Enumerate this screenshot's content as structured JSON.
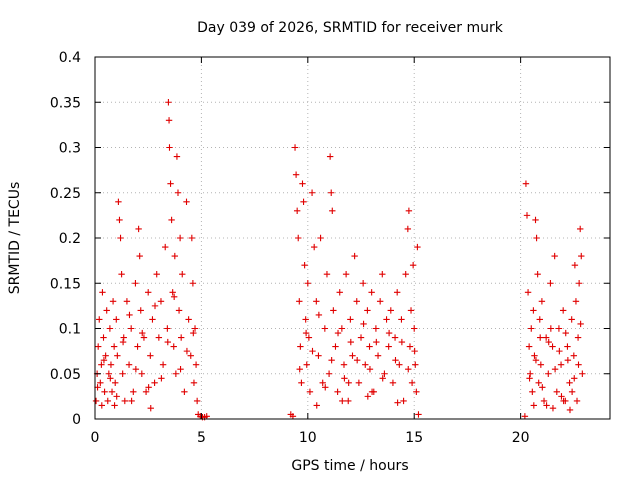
{
  "chart_data": {
    "type": "scatter",
    "title": "Day 039 of 2026, SRMTID for receiver murk",
    "xlabel": "GPS time / hours",
    "ylabel": "SRMTID / TECUs",
    "xlim": [
      0,
      24.2
    ],
    "ylim": [
      0,
      0.4
    ],
    "xticks": [
      0,
      5,
      10,
      15,
      20
    ],
    "xtick_labels": [
      "0",
      "5",
      "10",
      "15",
      "20"
    ],
    "yticks": [
      0,
      0.05,
      0.1,
      0.15,
      0.2,
      0.25,
      0.3,
      0.35,
      0.4
    ],
    "ytick_labels": [
      "0",
      "0.05",
      "0.1",
      "0.15",
      "0.2",
      "0.25",
      "0.3",
      "0.35",
      "0.4"
    ],
    "grid": true,
    "marker": "plus",
    "color": "#e00000",
    "series": [
      {
        "name": "SRMTID",
        "points": [
          [
            0.05,
            0.02
          ],
          [
            0.1,
            0.05
          ],
          [
            0.15,
            0.08
          ],
          [
            0.2,
            0.11
          ],
          [
            0.25,
            0.04
          ],
          [
            0.3,
            0.06
          ],
          [
            0.35,
            0.14
          ],
          [
            0.4,
            0.09
          ],
          [
            0.45,
            0.03
          ],
          [
            0.5,
            0.07
          ],
          [
            0.55,
            0.12
          ],
          [
            0.6,
            0.02
          ],
          [
            0.65,
            0.05
          ],
          [
            0.7,
            0.1
          ],
          [
            0.75,
            0.06
          ],
          [
            0.8,
            0.03
          ],
          [
            0.85,
            0.13
          ],
          [
            0.9,
            0.08
          ],
          [
            0.95,
            0.04
          ],
          [
            1.0,
            0.11
          ],
          [
            1.05,
            0.07
          ],
          [
            1.1,
            0.24
          ],
          [
            1.15,
            0.22
          ],
          [
            1.2,
            0.2
          ],
          [
            1.25,
            0.16
          ],
          [
            1.3,
            0.05
          ],
          [
            1.35,
            0.09
          ],
          [
            1.4,
            0.02
          ],
          [
            1.5,
            0.13
          ],
          [
            1.6,
            0.06
          ],
          [
            1.7,
            0.1
          ],
          [
            1.8,
            0.03
          ],
          [
            1.9,
            0.15
          ],
          [
            2.0,
            0.08
          ],
          [
            2.05,
            0.21
          ],
          [
            2.1,
            0.18
          ],
          [
            2.15,
            0.12
          ],
          [
            2.2,
            0.05
          ],
          [
            2.3,
            0.09
          ],
          [
            2.4,
            0.03
          ],
          [
            2.5,
            0.14
          ],
          [
            2.6,
            0.07
          ],
          [
            2.7,
            0.11
          ],
          [
            2.8,
            0.04
          ],
          [
            2.9,
            0.16
          ],
          [
            3.0,
            0.09
          ],
          [
            3.1,
            0.13
          ],
          [
            3.2,
            0.06
          ],
          [
            3.3,
            0.19
          ],
          [
            3.4,
            0.1
          ],
          [
            3.45,
            0.35
          ],
          [
            3.48,
            0.33
          ],
          [
            3.5,
            0.3
          ],
          [
            3.55,
            0.26
          ],
          [
            3.6,
            0.22
          ],
          [
            3.65,
            0.14
          ],
          [
            3.7,
            0.08
          ],
          [
            3.75,
            0.18
          ],
          [
            3.8,
            0.05
          ],
          [
            3.85,
            0.29
          ],
          [
            3.9,
            0.25
          ],
          [
            3.95,
            0.12
          ],
          [
            4.0,
            0.2
          ],
          [
            4.05,
            0.09
          ],
          [
            4.1,
            0.16
          ],
          [
            4.2,
            0.03
          ],
          [
            4.3,
            0.24
          ],
          [
            4.4,
            0.11
          ],
          [
            4.5,
            0.07
          ],
          [
            4.55,
            0.2
          ],
          [
            4.6,
            0.15
          ],
          [
            4.65,
            0.04
          ],
          [
            4.7,
            0.1
          ],
          [
            4.75,
            0.06
          ],
          [
            4.8,
            0.02
          ],
          [
            4.85,
            0.005
          ],
          [
            4.95,
            0.003
          ],
          [
            5.05,
            0.002
          ],
          [
            5.15,
            0.002
          ],
          [
            5.25,
            0.003
          ],
          [
            0.12,
            0.035
          ],
          [
            0.42,
            0.065
          ],
          [
            0.72,
            0.045
          ],
          [
            1.02,
            0.025
          ],
          [
            1.32,
            0.085
          ],
          [
            1.62,
            0.115
          ],
          [
            1.92,
            0.055
          ],
          [
            2.22,
            0.095
          ],
          [
            2.52,
            0.035
          ],
          [
            2.82,
            0.125
          ],
          [
            3.12,
            0.045
          ],
          [
            3.42,
            0.085
          ],
          [
            3.72,
            0.135
          ],
          [
            4.02,
            0.055
          ],
          [
            4.32,
            0.075
          ],
          [
            4.62,
            0.095
          ],
          [
            0.32,
            0.015
          ],
          [
            0.92,
            0.015
          ],
          [
            1.72,
            0.02
          ],
          [
            2.62,
            0.012
          ],
          [
            9.2,
            0.005
          ],
          [
            9.3,
            0.003
          ],
          [
            9.4,
            0.3
          ],
          [
            9.45,
            0.27
          ],
          [
            9.5,
            0.23
          ],
          [
            9.55,
            0.2
          ],
          [
            9.6,
            0.13
          ],
          [
            9.65,
            0.08
          ],
          [
            9.7,
            0.04
          ],
          [
            9.75,
            0.26
          ],
          [
            9.8,
            0.24
          ],
          [
            9.85,
            0.17
          ],
          [
            9.9,
            0.11
          ],
          [
            9.95,
            0.06
          ],
          [
            10.0,
            0.15
          ],
          [
            10.05,
            0.09
          ],
          [
            10.1,
            0.03
          ],
          [
            10.2,
            0.25
          ],
          [
            10.3,
            0.19
          ],
          [
            10.4,
            0.13
          ],
          [
            10.5,
            0.07
          ],
          [
            10.6,
            0.2
          ],
          [
            10.7,
            0.04
          ],
          [
            10.8,
            0.1
          ],
          [
            10.9,
            0.16
          ],
          [
            11.0,
            0.05
          ],
          [
            11.05,
            0.29
          ],
          [
            11.1,
            0.25
          ],
          [
            11.15,
            0.23
          ],
          [
            11.2,
            0.12
          ],
          [
            11.3,
            0.08
          ],
          [
            11.4,
            0.03
          ],
          [
            11.5,
            0.14
          ],
          [
            11.6,
            0.1
          ],
          [
            11.7,
            0.06
          ],
          [
            11.8,
            0.16
          ],
          [
            11.9,
            0.02
          ],
          [
            12.0,
            0.11
          ],
          [
            12.1,
            0.07
          ],
          [
            12.2,
            0.18
          ],
          [
            12.3,
            0.13
          ],
          [
            12.4,
            0.04
          ],
          [
            12.5,
            0.09
          ],
          [
            12.6,
            0.15
          ],
          [
            12.7,
            0.06
          ],
          [
            12.8,
            0.12
          ],
          [
            12.9,
            0.08
          ],
          [
            13.0,
            0.14
          ],
          [
            13.1,
            0.03
          ],
          [
            13.2,
            0.1
          ],
          [
            13.3,
            0.07
          ],
          [
            13.4,
            0.13
          ],
          [
            13.5,
            0.16
          ],
          [
            13.6,
            0.05
          ],
          [
            13.7,
            0.11
          ],
          [
            13.8,
            0.08
          ],
          [
            13.9,
            0.12
          ],
          [
            14.0,
            0.04
          ],
          [
            14.1,
            0.09
          ],
          [
            14.2,
            0.14
          ],
          [
            14.3,
            0.06
          ],
          [
            14.4,
            0.11
          ],
          [
            14.5,
            0.02
          ],
          [
            14.6,
            0.16
          ],
          [
            14.7,
            0.21
          ],
          [
            14.75,
            0.23
          ],
          [
            14.8,
            0.08
          ],
          [
            14.85,
            0.12
          ],
          [
            14.9,
            0.04
          ],
          [
            14.95,
            0.17
          ],
          [
            15.0,
            0.1
          ],
          [
            15.05,
            0.06
          ],
          [
            15.1,
            0.03
          ],
          [
            15.15,
            0.19
          ],
          [
            15.2,
            0.005
          ],
          [
            9.62,
            0.055
          ],
          [
            9.92,
            0.095
          ],
          [
            10.22,
            0.075
          ],
          [
            10.52,
            0.115
          ],
          [
            10.82,
            0.035
          ],
          [
            11.12,
            0.065
          ],
          [
            11.42,
            0.095
          ],
          [
            11.72,
            0.045
          ],
          [
            12.02,
            0.085
          ],
          [
            12.32,
            0.065
          ],
          [
            12.62,
            0.105
          ],
          [
            12.92,
            0.055
          ],
          [
            13.22,
            0.085
          ],
          [
            13.52,
            0.045
          ],
          [
            13.82,
            0.095
          ],
          [
            14.12,
            0.065
          ],
          [
            14.42,
            0.085
          ],
          [
            14.72,
            0.055
          ],
          [
            15.02,
            0.075
          ],
          [
            10.42,
            0.015
          ],
          [
            11.62,
            0.02
          ],
          [
            12.82,
            0.025
          ],
          [
            14.22,
            0.018
          ],
          [
            13.02,
            0.03
          ],
          [
            11.92,
            0.04
          ],
          [
            20.2,
            0.003
          ],
          [
            20.25,
            0.26
          ],
          [
            20.3,
            0.225
          ],
          [
            20.35,
            0.14
          ],
          [
            20.4,
            0.08
          ],
          [
            20.45,
            0.05
          ],
          [
            20.5,
            0.1
          ],
          [
            20.55,
            0.03
          ],
          [
            20.6,
            0.12
          ],
          [
            20.65,
            0.07
          ],
          [
            20.7,
            0.22
          ],
          [
            20.75,
            0.2
          ],
          [
            20.8,
            0.16
          ],
          [
            20.85,
            0.04
          ],
          [
            20.9,
            0.11
          ],
          [
            20.95,
            0.06
          ],
          [
            21.0,
            0.13
          ],
          [
            21.1,
            0.02
          ],
          [
            21.2,
            0.09
          ],
          [
            21.3,
            0.05
          ],
          [
            21.4,
            0.15
          ],
          [
            21.5,
            0.08
          ],
          [
            21.6,
            0.18
          ],
          [
            21.7,
            0.03
          ],
          [
            21.8,
            0.1
          ],
          [
            21.9,
            0.06
          ],
          [
            22.0,
            0.12
          ],
          [
            22.1,
            0.02
          ],
          [
            22.2,
            0.08
          ],
          [
            22.3,
            0.04
          ],
          [
            22.4,
            0.11
          ],
          [
            22.5,
            0.07
          ],
          [
            22.55,
            0.17
          ],
          [
            22.6,
            0.13
          ],
          [
            22.65,
            0.02
          ],
          [
            22.7,
            0.09
          ],
          [
            22.75,
            0.15
          ],
          [
            22.8,
            0.21
          ],
          [
            22.85,
            0.18
          ],
          [
            22.9,
            0.05
          ],
          [
            20.42,
            0.045
          ],
          [
            20.72,
            0.065
          ],
          [
            21.02,
            0.035
          ],
          [
            21.32,
            0.085
          ],
          [
            21.62,
            0.055
          ],
          [
            21.92,
            0.025
          ],
          [
            22.22,
            0.065
          ],
          [
            22.52,
            0.045
          ],
          [
            22.82,
            0.105
          ],
          [
            21.22,
            0.015
          ],
          [
            21.52,
            0.012
          ],
          [
            22.02,
            0.02
          ],
          [
            22.32,
            0.01
          ],
          [
            20.92,
            0.09
          ],
          [
            21.42,
            0.1
          ],
          [
            21.82,
            0.075
          ],
          [
            22.12,
            0.095
          ],
          [
            22.42,
            0.03
          ],
          [
            22.72,
            0.06
          ],
          [
            20.62,
            0.015
          ]
        ]
      }
    ]
  }
}
